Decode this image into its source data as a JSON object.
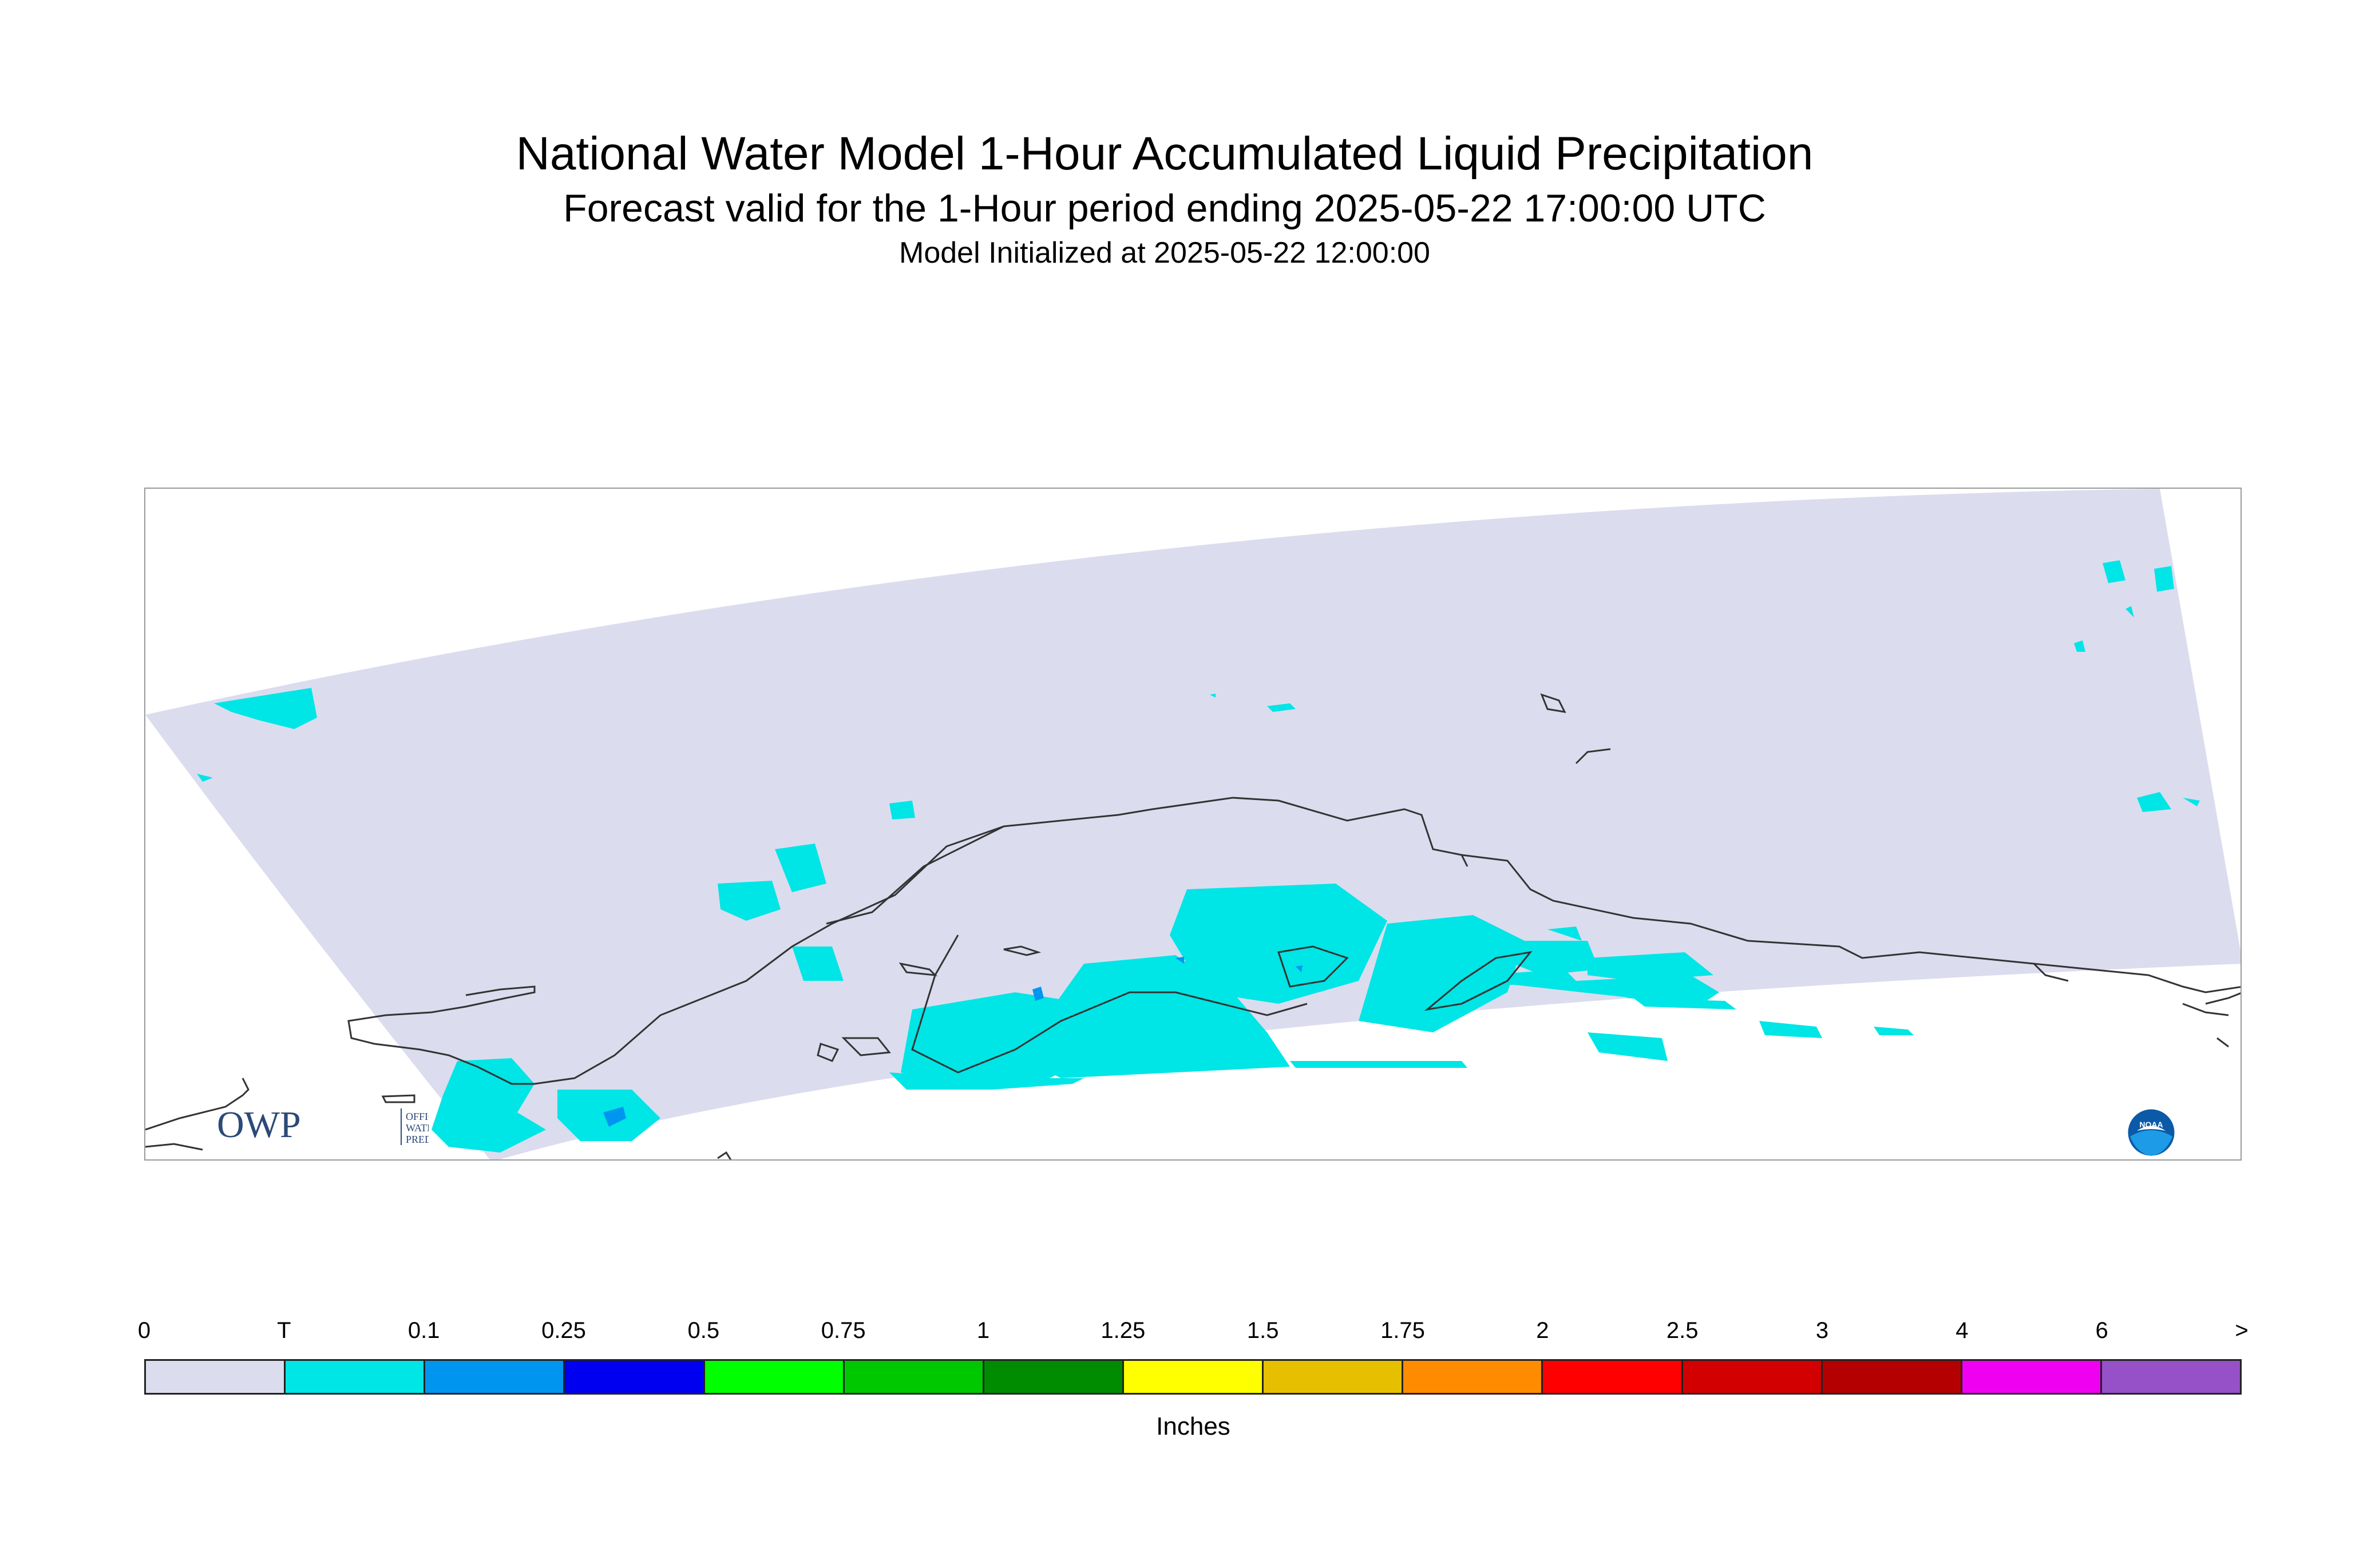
{
  "title": "National Water Model 1-Hour Accumulated Liquid Precipitation",
  "subtitle": "Forecast valid for the 1-Hour period ending 2025-05-22 17:00:00 UTC",
  "init_line": "Model Initialized at 2025-05-22 12:00:00",
  "owp_logo": {
    "initials": "OWP",
    "line1": "OFFICE OF",
    "line2": "WATER",
    "line3": "PREDICTION"
  },
  "noaa_logo": {
    "text": "NOAA",
    "icon": "noaa-seal"
  },
  "legend": {
    "ticks": [
      "0",
      "T",
      "0.1",
      "0.25",
      "0.5",
      "0.75",
      "1",
      "1.25",
      "1.5",
      "1.75",
      "2",
      "2.5",
      "3",
      "4",
      "6",
      ">"
    ],
    "colors": [
      "#dcdcef",
      "#00e5e5",
      "#0096f0",
      "#0000f0",
      "#00ff00",
      "#00c800",
      "#008c00",
      "#ffff00",
      "#e6c000",
      "#ff8c00",
      "#ff0000",
      "#d20000",
      "#b40000",
      "#f000f0",
      "#9650c8"
    ],
    "units": "Inches"
  },
  "map": {
    "domain_color": "#dcdcef",
    "trace_color": "#00e5e5",
    "light_color": "#0096f0",
    "coast_color": "#333333"
  }
}
